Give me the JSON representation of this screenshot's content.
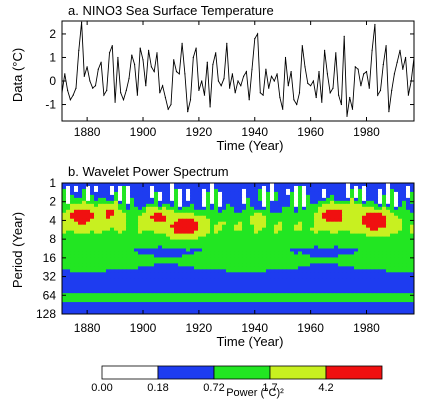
{
  "chart_data": [
    {
      "type": "line",
      "title": "a. NINO3 Sea Surface Temperature",
      "xlabel": "Time (Year)",
      "ylabel": "Data (°C)",
      "xlim": [
        1871,
        1997
      ],
      "ylim": [
        -1.7,
        2.55
      ],
      "xticks": [
        1880,
        1900,
        1920,
        1940,
        1960,
        1980
      ],
      "yticks": [
        -1,
        0,
        1,
        2
      ],
      "series": [
        {
          "x": [
            1871,
            1872,
            1873,
            1874,
            1875,
            1876,
            1877,
            1878,
            1879,
            1880,
            1881,
            1882,
            1883,
            1884,
            1885,
            1886,
            1887,
            1888,
            1889,
            1890,
            1891,
            1892,
            1893,
            1894,
            1895,
            1896,
            1897,
            1898,
            1899,
            1900,
            1901,
            1902,
            1903,
            1904,
            1905,
            1906,
            1907,
            1908,
            1909,
            1910,
            1911,
            1912,
            1913,
            1914,
            1915,
            1916,
            1917,
            1918,
            1919,
            1920,
            1921,
            1922,
            1923,
            1924,
            1925,
            1926,
            1927,
            1928,
            1929,
            1930,
            1931,
            1932,
            1933,
            1934,
            1935,
            1936,
            1937,
            1938,
            1939,
            1940,
            1941,
            1942,
            1943,
            1944,
            1945,
            1946,
            1947,
            1948,
            1949,
            1950,
            1951,
            1952,
            1953,
            1954,
            1955,
            1956,
            1957,
            1958,
            1959,
            1960,
            1961,
            1962,
            1963,
            1964,
            1965,
            1966,
            1967,
            1968,
            1969,
            1970,
            1971,
            1972,
            1973,
            1974,
            1975,
            1976,
            1977,
            1978,
            1979,
            1980,
            1981,
            1982,
            1983,
            1984,
            1985,
            1986,
            1987,
            1988,
            1989,
            1990,
            1991,
            1992,
            1993,
            1994,
            1995,
            1996,
            1997
          ],
          "y": [
            -0.5,
            0.3,
            -0.4,
            -0.8,
            -0.6,
            -0.3,
            1.3,
            2.5,
            0.2,
            0.6,
            0.0,
            -0.3,
            -0.2,
            0.5,
            0.8,
            -0.6,
            -0.4,
            1.2,
            1.5,
            -0.9,
            1.0,
            -0.5,
            -0.8,
            -0.4,
            0.1,
            1.1,
            0.7,
            -0.6,
            1.4,
            0.9,
            -0.2,
            1.3,
            0.6,
            0.4,
            1.2,
            -0.5,
            -0.2,
            -0.7,
            -1.2,
            -1.0,
            0.9,
            0.4,
            0.3,
            1.6,
            0.3,
            -1.3,
            -0.8,
            1.0,
            1.4,
            -0.4,
            0.0,
            -0.6,
            0.8,
            -1.1,
            0.7,
            1.2,
            0.0,
            -0.2,
            0.1,
            1.6,
            -0.3,
            0.3,
            -0.5,
            0.0,
            -0.2,
            0.2,
            0.4,
            -0.8,
            0.5,
            1.8,
            2.0,
            -0.5,
            -0.6,
            0.5,
            -0.3,
            0.2,
            0.0,
            0.3,
            -0.7,
            -1.2,
            1.0,
            -0.2,
            0.4,
            -0.8,
            -1.0,
            -0.5,
            1.5,
            0.6,
            -0.1,
            -0.2,
            0.0,
            -0.7,
            0.4,
            -0.9,
            1.3,
            0.3,
            -0.5,
            -0.3,
            1.2,
            -0.6,
            -1.0,
            1.9,
            -1.5,
            -0.7,
            -1.2,
            0.6,
            0.5,
            -0.2,
            0.3,
            0.4,
            -0.3,
            1.3,
            2.4,
            -0.6,
            -0.4,
            0.7,
            1.5,
            -1.3,
            -0.4,
            0.3,
            0.8,
            1.3,
            0.5,
            1.0,
            -0.6,
            0.0,
            1.0
          ]
        }
      ]
    },
    {
      "type": "heatmap",
      "title": "b. Wavelet Power Spectrum",
      "xlabel": "Time (Year)",
      "ylabel": "Period (Year)",
      "xlim": [
        1871,
        1997
      ],
      "ylim": [
        1,
        128
      ],
      "y_scale": "log2",
      "y_reversed": true,
      "xticks": [
        1880,
        1900,
        1920,
        1940,
        1960,
        1980
      ],
      "yticks": [
        1,
        2,
        4,
        8,
        16,
        32,
        64,
        128
      ],
      "colorbar": {
        "label": "Power (°C)²",
        "levels": [
          "0.00",
          "0.18",
          "0.72",
          "1.7",
          "4.2"
        ],
        "colors": [
          "#ffffff",
          "#1e3cf0",
          "#22e622",
          "#c8f020",
          "#f01010"
        ]
      },
      "blobs": [
        {
          "x": 1878,
          "period": 3.3,
          "sx": 4.5,
          "so": 0.55,
          "p": 5.5
        },
        {
          "x": 1888,
          "period": 3.0,
          "sx": 4.0,
          "so": 0.5,
          "p": 3.5
        },
        {
          "x": 1905,
          "period": 3.5,
          "sx": 4.5,
          "so": 0.45,
          "p": 4.0
        },
        {
          "x": 1915,
          "period": 5.0,
          "sx": 5.0,
          "so": 0.5,
          "p": 6.0
        },
        {
          "x": 1941,
          "period": 3.8,
          "sx": 2.0,
          "so": 0.3,
          "p": 2.5
        },
        {
          "x": 1968,
          "period": 3.2,
          "sx": 5.0,
          "so": 0.5,
          "p": 5.0
        },
        {
          "x": 1983,
          "period": 4.0,
          "sx": 5.0,
          "so": 0.5,
          "p": 6.5
        },
        {
          "x": 1976,
          "period": 2.5,
          "sx": 2.5,
          "so": 0.35,
          "p": 2.5
        }
      ]
    }
  ]
}
